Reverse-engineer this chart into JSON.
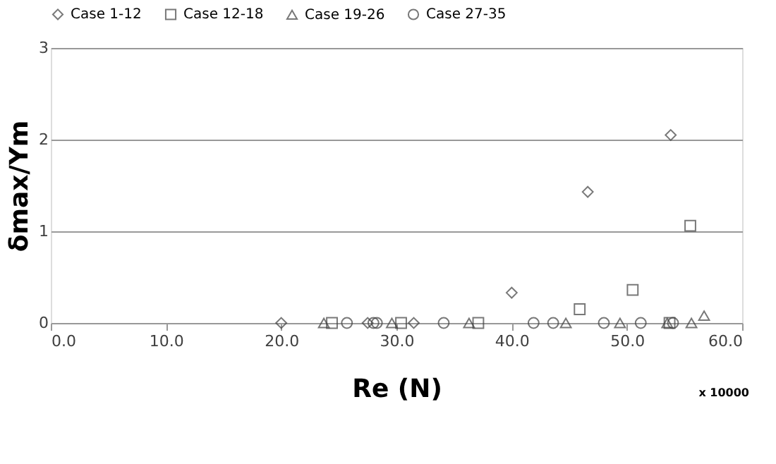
{
  "chart_data": {
    "type": "scatter",
    "xlabel": "Re (N)",
    "ylabel": "δmax/Ym",
    "xlim": [
      0,
      60
    ],
    "xticks": [
      {
        "value": 0,
        "label": "0.0"
      },
      {
        "value": 10,
        "label": "10.0"
      },
      {
        "value": 20,
        "label": "20.0"
      },
      {
        "value": 30,
        "label": "30.0"
      },
      {
        "value": 40,
        "label": "40.0"
      },
      {
        "value": 50,
        "label": "50.0"
      },
      {
        "value": 60,
        "label": "60.0"
      }
    ],
    "ylim": [
      0,
      3
    ],
    "yticks": [
      0,
      1,
      2,
      3
    ],
    "grid": "y",
    "legend": "top",
    "annotations": [
      "x 10000"
    ],
    "series": [
      {
        "name": "Case 1-12",
        "color": "#404040",
        "marker": "diamond",
        "x": [
          20.0,
          27.5,
          31.5,
          40.0,
          46.6,
          53.8
        ],
        "values": [
          0,
          0,
          0,
          0.33,
          1.43,
          2.05
        ]
      },
      {
        "name": "Case 12-18",
        "color": "#404040",
        "marker": "square",
        "x": [
          24.4,
          30.4,
          37.1,
          45.9,
          50.5,
          53.7,
          55.5
        ],
        "values": [
          0,
          0,
          0,
          0.15,
          0.36,
          0,
          1.06
        ]
      },
      {
        "name": "Case 19-26",
        "color": "#404040",
        "marker": "triangle",
        "x": [
          23.7,
          29.6,
          36.3,
          44.7,
          49.4,
          53.5,
          55.6,
          56.7
        ],
        "values": [
          0,
          0,
          0,
          0,
          0,
          0,
          0,
          0.08
        ]
      },
      {
        "name": "Case 27-35",
        "color": "#404040",
        "marker": "circle",
        "x": [
          25.7,
          28.0,
          28.3,
          34.1,
          41.9,
          43.6,
          48.0,
          51.2,
          54.0
        ],
        "values": [
          0,
          0,
          0,
          0,
          0,
          0,
          0,
          0,
          0
        ]
      }
    ]
  }
}
